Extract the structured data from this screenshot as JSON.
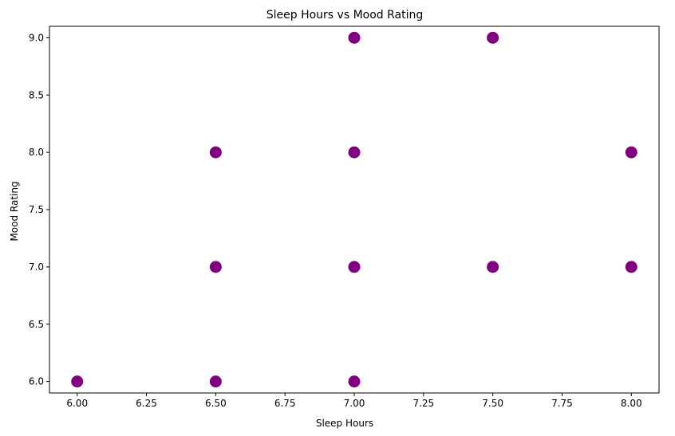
{
  "chart_data": {
    "type": "scatter",
    "title": "Sleep Hours vs Mood Rating",
    "xlabel": "Sleep Hours",
    "ylabel": "Mood Rating",
    "xlim": [
      5.9,
      8.1
    ],
    "ylim": [
      5.9,
      9.1
    ],
    "xticks": [
      "6.00",
      "6.25",
      "6.50",
      "6.75",
      "7.00",
      "7.25",
      "7.50",
      "7.75",
      "8.00"
    ],
    "yticks": [
      "6.0",
      "6.5",
      "7.0",
      "7.5",
      "8.0",
      "8.5",
      "9.0"
    ],
    "grid": false,
    "marker_color": "#800080",
    "points": [
      {
        "x": 6.0,
        "y": 6.0
      },
      {
        "x": 6.5,
        "y": 6.0
      },
      {
        "x": 6.5,
        "y": 7.0
      },
      {
        "x": 6.5,
        "y": 8.0
      },
      {
        "x": 7.0,
        "y": 6.0
      },
      {
        "x": 7.0,
        "y": 7.0
      },
      {
        "x": 7.0,
        "y": 8.0
      },
      {
        "x": 7.0,
        "y": 9.0
      },
      {
        "x": 7.5,
        "y": 7.0
      },
      {
        "x": 7.5,
        "y": 9.0
      },
      {
        "x": 8.0,
        "y": 7.0
      },
      {
        "x": 8.0,
        "y": 8.0
      }
    ]
  }
}
